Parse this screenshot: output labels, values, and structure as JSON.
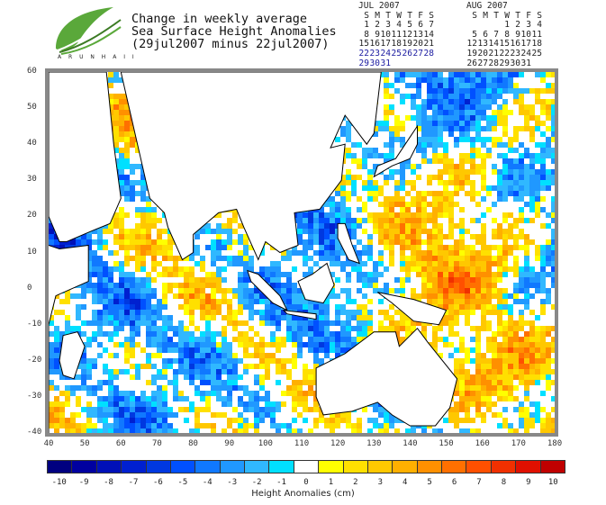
{
  "header": {
    "logo_text": "A R U N  H A I I",
    "title_lines": [
      "Change in weekly average",
      "Sea Surface Height Anomalies",
      "(29jul2007 minus 22jul2007)"
    ]
  },
  "calendars": [
    {
      "month": "JUL 2007",
      "days_header": [
        "S",
        "M",
        "T",
        "W",
        "T",
        "F",
        "S"
      ],
      "weeks": [
        [
          "1",
          "2",
          "3",
          "4",
          "5",
          "6",
          "7"
        ],
        [
          "8",
          "9",
          "10",
          "11",
          "12",
          "13",
          "14"
        ],
        [
          "15",
          "16",
          "17",
          "18",
          "19",
          "20",
          "21"
        ],
        [
          "22",
          "23",
          "24",
          "25",
          "26",
          "27",
          "28"
        ],
        [
          "29",
          "30",
          "31",
          "",
          "",
          "",
          ""
        ]
      ],
      "highlighted_weeks": [
        3,
        4
      ]
    },
    {
      "month": "AUG 2007",
      "days_header": [
        "S",
        "M",
        "T",
        "W",
        "T",
        "F",
        "S"
      ],
      "weeks": [
        [
          "",
          "",
          "",
          "1",
          "2",
          "3",
          "4"
        ],
        [
          "5",
          "6",
          "7",
          "8",
          "9",
          "10",
          "11"
        ],
        [
          "12",
          "13",
          "14",
          "15",
          "16",
          "17",
          "18"
        ],
        [
          "19",
          "20",
          "21",
          "22",
          "23",
          "24",
          "25"
        ],
        [
          "26",
          "27",
          "28",
          "29",
          "30",
          "31",
          ""
        ]
      ],
      "highlighted_weeks": []
    }
  ],
  "map": {
    "lat_ticks": [
      "60",
      "50",
      "40",
      "30",
      "20",
      "10",
      "0",
      "-10",
      "-20",
      "-30",
      "-40"
    ],
    "lon_ticks": [
      "40",
      "50",
      "60",
      "70",
      "80",
      "90",
      "100",
      "110",
      "120",
      "130",
      "140",
      "150",
      "160",
      "170",
      "180"
    ],
    "lat_range": [
      -40,
      60
    ],
    "lon_range": [
      40,
      180
    ]
  },
  "colorbar": {
    "title": "Height Anomalies (cm)",
    "labels": [
      "-10",
      "-9",
      "-8",
      "-7",
      "-6",
      "-5",
      "-4",
      "-3",
      "-2",
      "-1",
      "0",
      "1",
      "2",
      "3",
      "4",
      "5",
      "6",
      "7",
      "8",
      "9",
      "10"
    ],
    "colors": [
      "#000080",
      "#0000a0",
      "#0010b8",
      "#0020d0",
      "#0038e0",
      "#0050ff",
      "#1078ff",
      "#2098ff",
      "#30b8ff",
      "#00e0ff",
      "#ffffff",
      "#ffff00",
      "#ffe000",
      "#ffc800",
      "#ffb000",
      "#ff9000",
      "#ff7000",
      "#ff5000",
      "#f03000",
      "#e01000",
      "#c00000"
    ]
  }
}
